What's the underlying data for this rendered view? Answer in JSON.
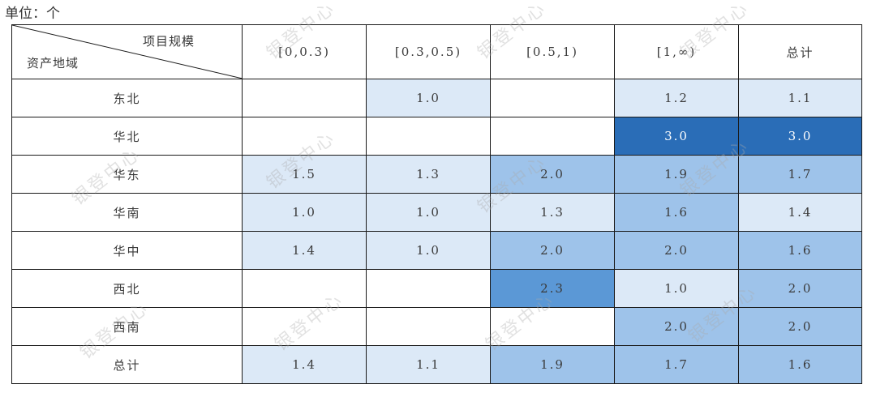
{
  "unit_label": "单位：个",
  "corner": {
    "top": "项目规模",
    "bottom": "资产地域"
  },
  "columns": [
    "[0,0.3)",
    "[0.3,0.5)",
    "[0.5,1)",
    "[1,∞)",
    "总计"
  ],
  "rows": [
    {
      "region": "东北",
      "values": [
        "",
        "1.0",
        "",
        "1.2",
        "1.1"
      ],
      "shades": [
        0,
        1,
        0,
        1,
        1
      ]
    },
    {
      "region": "华北",
      "values": [
        "",
        "",
        "",
        "3.0",
        "3.0"
      ],
      "shades": [
        0,
        0,
        0,
        4,
        4
      ]
    },
    {
      "region": "华东",
      "values": [
        "1.5",
        "1.3",
        "2.0",
        "1.9",
        "1.7"
      ],
      "shades": [
        1,
        1,
        2,
        2,
        2
      ]
    },
    {
      "region": "华南",
      "values": [
        "1.0",
        "1.0",
        "1.3",
        "1.6",
        "1.4"
      ],
      "shades": [
        1,
        1,
        1,
        2,
        1
      ]
    },
    {
      "region": "华中",
      "values": [
        "1.4",
        "1.0",
        "2.0",
        "2.0",
        "1.6"
      ],
      "shades": [
        1,
        1,
        2,
        2,
        2
      ]
    },
    {
      "region": "西北",
      "values": [
        "",
        "",
        "2.3",
        "1.0",
        "2.0"
      ],
      "shades": [
        0,
        0,
        3,
        1,
        2
      ]
    },
    {
      "region": "西南",
      "values": [
        "",
        "",
        "",
        "2.0",
        "2.0"
      ],
      "shades": [
        0,
        0,
        0,
        2,
        2
      ]
    },
    {
      "region": "总计",
      "values": [
        "1.4",
        "1.1",
        "1.9",
        "1.7",
        "1.6"
      ],
      "shades": [
        1,
        1,
        2,
        2,
        2
      ]
    }
  ],
  "shade_colors": [
    "#ffffff",
    "#dce9f7",
    "#9ec3ea",
    "#5b98d6",
    "#2a6db7"
  ],
  "watermark_text": "银登中心"
}
